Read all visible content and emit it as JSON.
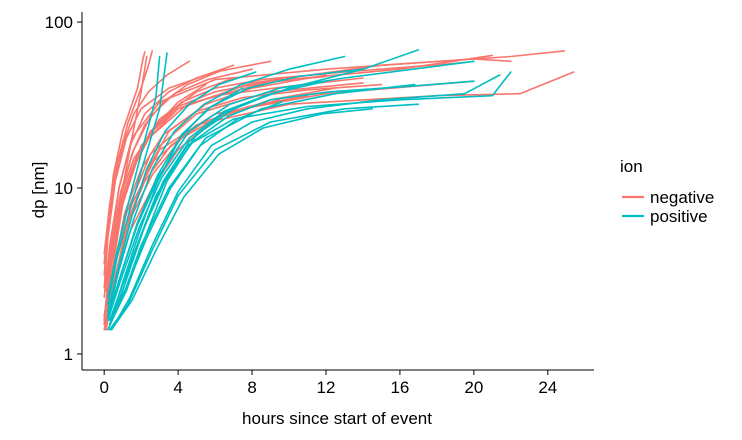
{
  "chart_data": {
    "type": "line",
    "xlabel": "hours since start of event",
    "ylabel": "dp [nm]",
    "x_scale": "linear",
    "y_scale": "log10",
    "xlim": [
      -1.2,
      26.5
    ],
    "ylim": [
      0.8,
      115
    ],
    "x_ticks": [
      0,
      4,
      8,
      12,
      16,
      20,
      24
    ],
    "x_tick_labels": [
      "0",
      "4",
      "8",
      "12",
      "16",
      "20",
      "24"
    ],
    "y_ticks": [
      1,
      10,
      100
    ],
    "y_tick_labels": [
      "1",
      "10",
      "100"
    ],
    "grid": false,
    "legend": {
      "title": "ion",
      "position": "right",
      "entries": [
        {
          "label": "negative",
          "color": "#F8766D"
        },
        {
          "label": "positive",
          "color": "#00BFC4"
        }
      ]
    },
    "series": [
      {
        "name": "negative",
        "color": "#F8766D",
        "lines": [
          {
            "x": [
              0.1,
              0.4,
              1.0,
              2.0,
              4.0,
              8.0,
              15.0,
              22.0,
              24.9
            ],
            "y": [
              1.4,
              3.0,
              8.0,
              18.0,
              30.0,
              43.0,
              55.0,
              62.0,
              67.0
            ]
          },
          {
            "x": [
              0.1,
              0.5,
              1.2,
              2.5,
              5.0,
              10.0,
              18.0,
              22.5,
              25.4
            ],
            "y": [
              1.5,
              2.5,
              6.0,
              14.0,
              24.0,
              32.0,
              36.0,
              37.0,
              50.0
            ]
          },
          {
            "x": [
              0.1,
              0.3,
              0.8,
              1.5,
              3.0,
              6.0,
              12.0,
              20.0,
              22.0
            ],
            "y": [
              2.0,
              4.0,
              10.0,
              20.0,
              33.0,
              45.0,
              52.0,
              60.0,
              58.0
            ]
          },
          {
            "x": [
              0.0,
              0.3,
              1.0,
              2.2,
              4.5,
              9.0,
              16.0,
              21.0
            ],
            "y": [
              1.6,
              3.5,
              9.0,
              19.0,
              32.0,
              44.0,
              52.0,
              63.0
            ]
          },
          {
            "x": [
              0.1,
              0.4,
              1.2,
              2.5,
              5.0,
              9.0,
              14.0
            ],
            "y": [
              1.5,
              2.8,
              7.0,
              16.0,
              28.0,
              38.0,
              43.0
            ]
          },
          {
            "x": [
              0.0,
              0.2,
              0.6,
              1.2,
              2.0,
              3.5,
              6.0,
              9.0
            ],
            "y": [
              2.5,
              5.0,
              11.0,
              20.0,
              30.0,
              40.0,
              50.0,
              58.0
            ]
          },
          {
            "x": [
              0.1,
              0.5,
              1.5,
              3.0,
              6.0,
              12.0,
              20.0
            ],
            "y": [
              1.8,
              3.2,
              8.0,
              17.0,
              28.0,
              37.0,
              44.0
            ]
          },
          {
            "x": [
              0.0,
              0.4,
              1.0,
              1.8,
              3.0,
              5.0,
              7.0
            ],
            "y": [
              1.6,
              4.0,
              9.0,
              16.0,
              26.0,
              38.0,
              46.0
            ]
          },
          {
            "x": [
              0.1,
              0.6,
              1.3,
              2.2,
              3.5,
              5.5,
              8.0,
              12.0
            ],
            "y": [
              1.4,
              2.6,
              6.0,
              12.0,
              22.0,
              32.0,
              40.0,
              48.0
            ]
          },
          {
            "x": [
              0.0,
              0.2,
              0.5,
              1.0,
              1.8,
              2.1,
              2.2
            ],
            "y": [
              3.5,
              6.0,
              12.0,
              22.0,
              40.0,
              60.0,
              66.0
            ]
          },
          {
            "x": [
              0.1,
              0.4,
              0.9,
              1.6,
              2.6,
              4.0,
              6.0,
              10.0,
              14.0
            ],
            "y": [
              2.0,
              4.5,
              9.0,
              15.0,
              22.0,
              30.0,
              36.0,
              41.0,
              46.0
            ]
          },
          {
            "x": [
              0.0,
              0.3,
              0.7,
              1.3,
              2.0,
              2.4,
              2.6
            ],
            "y": [
              4.0,
              8.0,
              14.0,
              25.0,
              40.0,
              55.0,
              67.0
            ]
          },
          {
            "x": [
              0.1,
              0.5,
              1.1,
              2.0,
              3.2,
              5.0,
              7.5,
              11.0,
              15.0
            ],
            "y": [
              1.5,
              3.0,
              7.0,
              13.0,
              21.0,
              29.0,
              35.0,
              39.0,
              42.0
            ]
          },
          {
            "x": [
              0.0,
              0.3,
              0.8,
              1.4,
              2.2,
              3.5,
              5.0,
              7.0
            ],
            "y": [
              2.2,
              4.5,
              10.0,
              18.0,
              28.0,
              38.0,
              46.0,
              55.0
            ]
          },
          {
            "x": [
              0.1,
              0.6,
              1.4,
              2.6,
              4.2,
              6.5,
              9.5
            ],
            "y": [
              1.6,
              3.0,
              6.5,
              12.0,
              20.0,
              28.0,
              34.0
            ]
          },
          {
            "x": [
              0.0,
              0.2,
              0.5,
              1.0,
              1.6,
              2.4,
              3.4,
              4.6
            ],
            "y": [
              3.0,
              5.5,
              10.0,
              18.0,
              28.0,
              38.0,
              48.0,
              58.0
            ]
          },
          {
            "x": [
              0.1,
              0.4,
              1.0,
              1.8,
              2.8,
              4.2,
              6.0,
              8.5,
              13.0,
              19.5
            ],
            "y": [
              1.8,
              3.5,
              8.0,
              15.0,
              24.0,
              33.0,
              40.0,
              45.0,
              50.0,
              57.0
            ]
          },
          {
            "x": [
              0.0,
              0.3,
              0.9,
              1.7,
              2.7,
              4.0,
              5.5
            ],
            "y": [
              1.5,
              3.2,
              7.5,
              14.0,
              23.0,
              33.0,
              42.0
            ]
          },
          {
            "x": [
              0.1,
              0.5,
              1.0,
              1.5,
              2.0,
              2.3
            ],
            "y": [
              2.6,
              5.0,
              10.0,
              20.0,
              38.0,
              62.0
            ]
          },
          {
            "x": [
              0.0,
              0.4,
              1.2,
              2.2,
              3.6,
              5.4,
              7.8,
              11.0
            ],
            "y": [
              1.7,
              3.0,
              6.0,
              11.0,
              18.0,
              25.0,
              31.0,
              36.0
            ]
          },
          {
            "x": [
              0.1,
              0.3,
              0.6,
              1.0,
              1.5,
              2.2,
              3.2,
              4.5,
              6.5
            ],
            "y": [
              2.0,
              3.5,
              6.0,
              10.0,
              16.0,
              24.0,
              33.0,
              42.0,
              52.0
            ]
          },
          {
            "x": [
              0.0,
              0.5,
              1.4,
              2.6,
              4.0,
              6.0,
              9.0,
              12.5
            ],
            "y": [
              1.4,
              2.5,
              5.5,
              10.0,
              17.0,
              26.0,
              34.0,
              40.0
            ]
          },
          {
            "x": [
              0.1,
              0.4,
              0.9,
              1.6,
              2.5,
              3.8,
              5.6,
              8.0
            ],
            "y": [
              2.4,
              4.8,
              9.5,
              17.0,
              27.0,
              37.0,
              45.0,
              52.0
            ]
          },
          {
            "x": [
              0.0,
              0.3,
              0.8,
              1.5,
              2.5,
              4.0,
              6.0,
              8.5,
              12.0
            ],
            "y": [
              1.5,
              3.0,
              7.0,
              13.0,
              22.0,
              31.0,
              38.0,
              43.0,
              47.0
            ]
          }
        ]
      },
      {
        "name": "positive",
        "color": "#00BFC4",
        "lines": [
          {
            "x": [
              0.2,
              0.8,
              1.6,
              2.8,
              4.5,
              7.0,
              11.0,
              16.0,
              21.0,
              22.0
            ],
            "y": [
              1.4,
              2.0,
              4.0,
              9.0,
              18.0,
              26.0,
              31.0,
              34.0,
              36.0,
              50.0
            ]
          },
          {
            "x": [
              0.2,
              1.0,
              2.0,
              3.5,
              5.5,
              8.5,
              12.5,
              16.8
            ],
            "y": [
              1.4,
              2.2,
              4.5,
              10.0,
              20.0,
              30.0,
              37.0,
              42.0
            ]
          },
          {
            "x": [
              0.3,
              1.2,
              2.2,
              3.4,
              5.0,
              7.2,
              10.0,
              14.0,
              17.0
            ],
            "y": [
              1.5,
              2.4,
              5.0,
              11.0,
              21.0,
              31.0,
              40.0,
              52.0,
              68.0
            ]
          },
          {
            "x": [
              0.2,
              0.9,
              1.8,
              3.0,
              4.6,
              6.8,
              9.5,
              13.0,
              20.0
            ],
            "y": [
              1.6,
              3.0,
              6.0,
              12.0,
              22.0,
              32.0,
              40.0,
              46.0,
              58.0
            ]
          },
          {
            "x": [
              0.3,
              1.3,
              2.5,
              4.0,
              6.0,
              9.0,
              13.0,
              17.0
            ],
            "y": [
              1.4,
              2.0,
              4.0,
              9.0,
              17.0,
              25.0,
              30.0,
              32.0
            ]
          },
          {
            "x": [
              0.2,
              0.8,
              1.6,
              2.6,
              3.8,
              5.4,
              7.4,
              10.0,
              13.0
            ],
            "y": [
              1.7,
              3.2,
              6.5,
              13.0,
              22.0,
              32.0,
              42.0,
              52.0,
              62.0
            ]
          },
          {
            "x": [
              0.3,
              1.1,
              2.1,
              3.2,
              4.6,
              6.4,
              8.8
            ],
            "y": [
              1.5,
              2.6,
              5.5,
              11.0,
              19.0,
              28.0,
              36.0
            ]
          },
          {
            "x": [
              0.2,
              0.7,
              1.4,
              2.2,
              3.0,
              3.4
            ],
            "y": [
              2.0,
              3.8,
              7.5,
              15.0,
              30.0,
              65.0
            ]
          },
          {
            "x": [
              0.4,
              1.4,
              2.6,
              4.0,
              5.8,
              8.0,
              11.0,
              15.0,
              19.5,
              21.4
            ],
            "y": [
              1.4,
              2.2,
              4.5,
              9.5,
              18.0,
              25.0,
              30.0,
              34.0,
              37.0,
              48.0
            ]
          },
          {
            "x": [
              0.2,
              0.9,
              1.9,
              3.1,
              4.6,
              6.5,
              9.0,
              12.0
            ],
            "y": [
              1.6,
              2.8,
              5.8,
              11.5,
              20.0,
              29.0,
              37.0,
              44.0
            ]
          },
          {
            "x": [
              0.3,
              1.0,
              1.9,
              2.9,
              4.1,
              5.6,
              7.5
            ],
            "y": [
              1.5,
              2.7,
              5.4,
              11.0,
              20.0,
              30.0,
              40.0
            ]
          },
          {
            "x": [
              0.2,
              0.8,
              1.5,
              2.3,
              3.3,
              4.6,
              6.2,
              8.2
            ],
            "y": [
              1.8,
              3.4,
              6.8,
              13.0,
              22.0,
              32.0,
              42.0,
              50.0
            ]
          },
          {
            "x": [
              0.4,
              1.5,
              2.8,
              4.3,
              6.2,
              8.6,
              11.8,
              14.5
            ],
            "y": [
              1.4,
              2.1,
              4.2,
              8.8,
              16.0,
              23.0,
              28.0,
              30.0
            ]
          },
          {
            "x": [
              0.2,
              0.9,
              1.8,
              2.9,
              4.2,
              5.8,
              7.8,
              10.5,
              14.0
            ],
            "y": [
              1.7,
              3.0,
              6.2,
              12.0,
              21.0,
              31.0,
              40.0,
              47.0,
              52.0
            ]
          },
          {
            "x": [
              0.3,
              1.2,
              2.3,
              3.6,
              5.2,
              7.2,
              9.6
            ],
            "y": [
              1.5,
              2.5,
              5.0,
              10.0,
              18.0,
              26.0,
              33.0
            ]
          },
          {
            "x": [
              0.2,
              0.7,
              1.3,
              2.0,
              2.8,
              3.0
            ],
            "y": [
              2.2,
              4.2,
              8.0,
              16.0,
              35.0,
              62.0
            ]
          },
          {
            "x": [
              0.3,
              1.1,
              2.1,
              3.3,
              4.8,
              6.7,
              9.0,
              12.2,
              16.5,
              20.0
            ],
            "y": [
              1.6,
              2.8,
              5.6,
              11.0,
              19.0,
              27.0,
              34.0,
              38.0,
              41.0,
              44.0
            ]
          }
        ]
      }
    ]
  }
}
